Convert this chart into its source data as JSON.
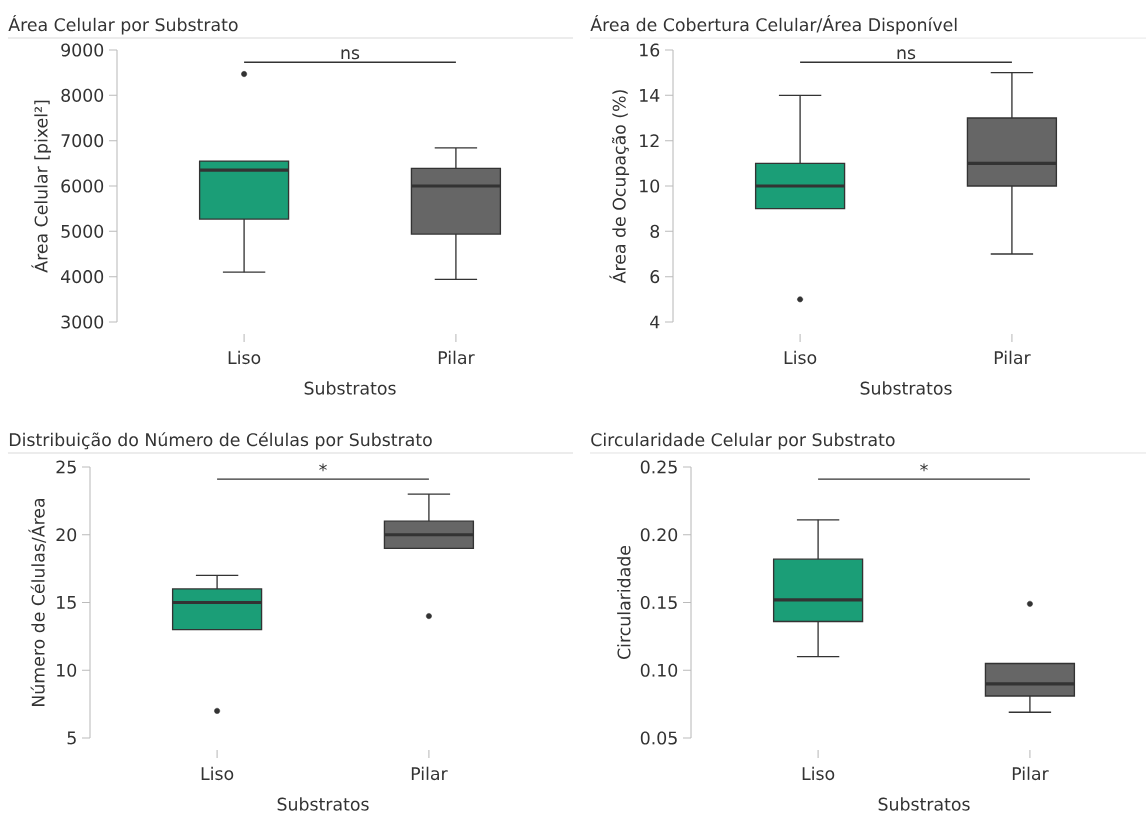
{
  "chart_data": [
    {
      "type": "box",
      "title": "Área Celular por Substrato",
      "xlabel": "Substratos",
      "ylabel": "Área Celular [pixel²]",
      "categories": [
        "Liso",
        "Pilar"
      ],
      "colors": [
        "#1b9e77",
        "#666666"
      ],
      "boxes": [
        {
          "low": 4100,
          "q1": 5270,
          "median": 6350,
          "q3": 6550,
          "high": 6550,
          "outliers": [
            8470
          ]
        },
        {
          "low": 3940,
          "q1": 4940,
          "median": 6000,
          "q3": 6390,
          "high": 6840
        }
      ],
      "ylim": [
        3000,
        9000
      ],
      "yticks": [
        3000,
        4000,
        5000,
        6000,
        7000,
        8000,
        9000
      ],
      "annotations": [
        "ns"
      ]
    },
    {
      "type": "box",
      "title": "Área de Cobertura Celular/Área Disponível",
      "xlabel": "Substratos",
      "ylabel": "Área de Ocupação (%)",
      "categories": [
        "Liso",
        "Pilar"
      ],
      "colors": [
        "#1b9e77",
        "#666666"
      ],
      "boxes": [
        {
          "low": 9,
          "q1": 9,
          "median": 10,
          "q3": 11,
          "high": 14,
          "outliers": [
            5
          ]
        },
        {
          "low": 7,
          "q1": 10,
          "median": 11,
          "q3": 13,
          "high": 15
        }
      ],
      "ylim": [
        4,
        16
      ],
      "yticks": [
        4,
        6,
        8,
        10,
        12,
        14,
        16
      ],
      "annotations": [
        "ns"
      ]
    },
    {
      "type": "box",
      "title": "Distribuição do Número de Células por Substrato",
      "xlabel": "Substratos",
      "ylabel": "Número de Células/Área",
      "categories": [
        "Liso",
        "Pilar"
      ],
      "colors": [
        "#1b9e77",
        "#666666"
      ],
      "boxes": [
        {
          "low": 13,
          "q1": 13,
          "median": 15,
          "q3": 16,
          "high": 17,
          "outliers": [
            7
          ]
        },
        {
          "low": 19,
          "q1": 19,
          "median": 20,
          "q3": 21,
          "high": 23,
          "outliers": [
            14
          ]
        }
      ],
      "ylim": [
        5,
        25
      ],
      "yticks": [
        5,
        10,
        15,
        20,
        25
      ],
      "annotations": [
        "*"
      ]
    },
    {
      "type": "box",
      "title": "Circularidade Celular por Substrato",
      "xlabel": "Substratos",
      "ylabel": "Circularidade",
      "categories": [
        "Liso",
        "Pilar"
      ],
      "colors": [
        "#1b9e77",
        "#666666"
      ],
      "boxes": [
        {
          "low": 0.11,
          "q1": 0.136,
          "median": 0.152,
          "q3": 0.182,
          "high": 0.211
        },
        {
          "low": 0.069,
          "q1": 0.081,
          "median": 0.09,
          "q3": 0.105,
          "high": 0.105,
          "outliers": [
            0.149
          ]
        }
      ],
      "ylim": [
        0.05,
        0.25
      ],
      "yticks": [
        {
          "value": 0.05,
          "label": "0.05"
        },
        {
          "value": 0.1,
          "label": "0.10"
        },
        {
          "value": 0.15,
          "label": "0.15"
        },
        {
          "value": 0.2,
          "label": "0.20"
        },
        {
          "value": 0.25,
          "label": "0.25"
        }
      ],
      "annotations": [
        "*"
      ]
    }
  ]
}
